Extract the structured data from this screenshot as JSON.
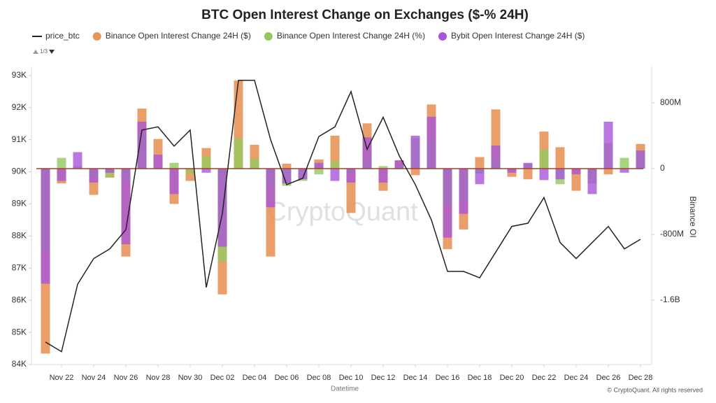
{
  "chart_data": {
    "type": "bar-line",
    "title": "BTC Open Interest Change on Exchanges ($-% 24H)",
    "x_label": "Datetime",
    "y2_label": "Binance OI",
    "watermark": "CryptoQuant",
    "credit": "© CryptoQuant. All rights reserved",
    "legend_page": "1/3",
    "categories": [
      null,
      "Nov 22",
      null,
      "Nov 24",
      null,
      "Nov 26",
      null,
      "Nov 28",
      null,
      "Nov 30",
      null,
      "Dec 02",
      null,
      "Dec 04",
      null,
      "Dec 06",
      null,
      "Dec 08",
      null,
      "Dec 10",
      null,
      "Dec 12",
      null,
      "Dec 14",
      null,
      "Dec 16",
      null,
      "Dec 18",
      null,
      "Dec 20",
      null,
      "Dec 22",
      null,
      "Dec 24",
      null,
      "Dec 26",
      null,
      "Dec 28"
    ],
    "ylim": [
      84000,
      93280
    ],
    "yticks": [
      {
        "value": 84000,
        "label": "84K"
      },
      {
        "value": 85000,
        "label": "85K"
      },
      {
        "value": 86000,
        "label": "86K"
      },
      {
        "value": 87000,
        "label": "87K"
      },
      {
        "value": 88000,
        "label": "88K"
      },
      {
        "value": 89000,
        "label": "89K"
      },
      {
        "value": 90000,
        "label": "90K"
      },
      {
        "value": 91000,
        "label": "91K"
      },
      {
        "value": 92000,
        "label": "92K"
      },
      {
        "value": 93000,
        "label": "93K"
      }
    ],
    "y2lim": [
      -2383,
      1242
    ],
    "y2ticks": [
      {
        "value": -1600,
        "label": "-1.6B"
      },
      {
        "value": -800,
        "label": "-800M"
      },
      0,
      {
        "value": 800,
        "label": "800M"
      }
    ],
    "series": [
      {
        "name": "price_btc",
        "color": "#222222",
        "kind": "line",
        "values": [
          84700,
          84400,
          86500,
          87300,
          87600,
          88200,
          91300,
          91400,
          90800,
          91300,
          86400,
          88700,
          92850,
          92850,
          91000,
          89600,
          89800,
          91100,
          91400,
          92500,
          90700,
          91700,
          90500,
          89600,
          88500,
          86900,
          86900,
          86700,
          87500,
          88300,
          88400,
          89200,
          87800,
          87300,
          87800,
          88300,
          87600,
          87900
        ]
      },
      {
        "name": "Binance Open Interest Change 24H ($)",
        "color": "#e8955a",
        "kind": "bar",
        "axis": "y2",
        "values": [
          -2250,
          -180,
          0,
          -320,
          -110,
          -1070,
          730,
          360,
          -430,
          -150,
          250,
          -1530,
          1070,
          290,
          -1070,
          60,
          0,
          110,
          400,
          -540,
          550,
          -270,
          100,
          -80,
          780,
          -980,
          -740,
          140,
          720,
          -100,
          -130,
          450,
          260,
          -270,
          -70,
          -70,
          0,
          300
        ]
      },
      {
        "name": "Binance Open Interest Change 24H (%)",
        "color": "#93c95f",
        "kind": "bar",
        "axis": "y2",
        "values": [
          -1000,
          130,
          30,
          -100,
          -100,
          -150,
          420,
          0,
          70,
          -60,
          150,
          -1130,
          370,
          120,
          -230,
          -210,
          -150,
          -70,
          90,
          -60,
          120,
          30,
          40,
          370,
          330,
          -450,
          -390,
          -60,
          120,
          0,
          60,
          230,
          -190,
          0,
          -180,
          310,
          130,
          200
        ]
      },
      {
        "name": "Bybit Open Interest Change 24H ($)",
        "color": "#a855db",
        "kind": "bar",
        "axis": "y2",
        "values": [
          -1400,
          -150,
          200,
          -170,
          -50,
          -920,
          570,
          170,
          -310,
          0,
          -50,
          -950,
          0,
          0,
          -470,
          -180,
          -130,
          70,
          -150,
          -170,
          380,
          -170,
          100,
          400,
          630,
          -840,
          -550,
          -190,
          280,
          -50,
          70,
          -140,
          -130,
          -70,
          -310,
          570,
          -50,
          220
        ]
      }
    ]
  }
}
